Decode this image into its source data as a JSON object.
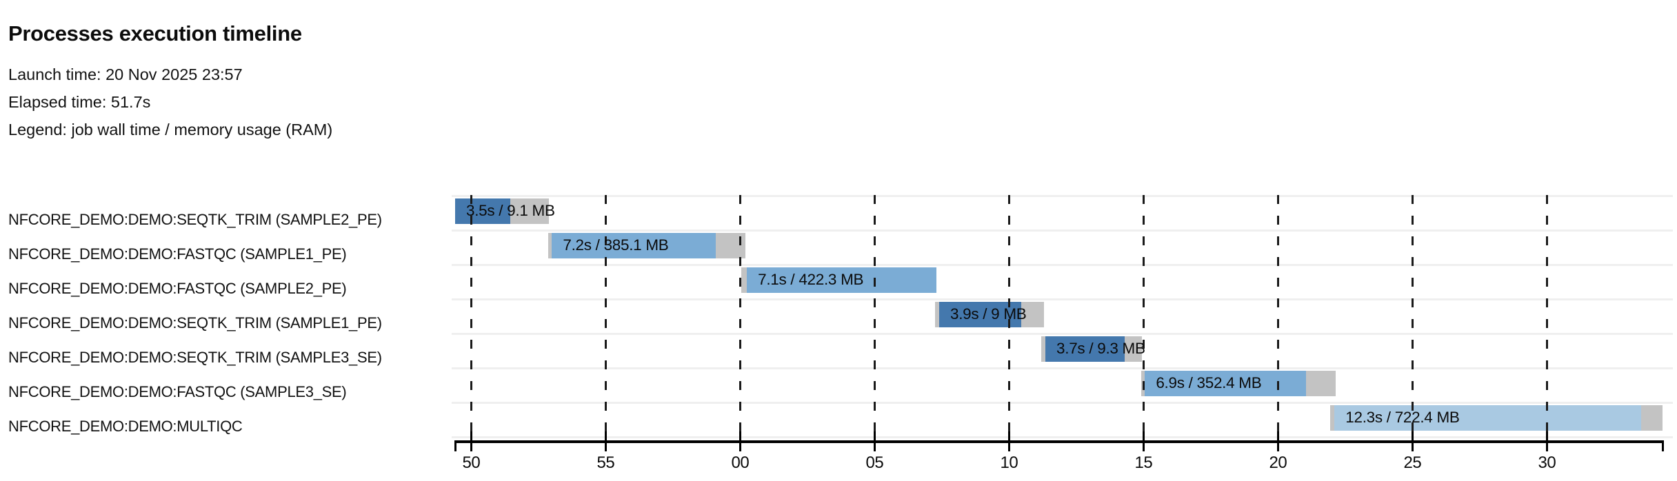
{
  "header": {
    "title": "Processes execution timeline",
    "launch_line": "Launch time: 20 Nov 2025 23:57",
    "elapsed_line": "Elapsed time: 51.7s",
    "legend_line": "Legend: job wall time / memory usage (RAM)"
  },
  "chart_data": {
    "type": "gantt-timeline",
    "title": "Processes execution timeline",
    "launch_time": "20 Nov 2025 23:57",
    "elapsed_time_s": 51.7,
    "legend": "job wall time / memory usage (RAM)",
    "x_axis": {
      "unit": "clock seconds after 23:57",
      "domain": [
        49.4,
        94.3
      ],
      "ticks": [
        {
          "t": 50,
          "label": "50"
        },
        {
          "t": 55,
          "label": "55"
        },
        {
          "t": 60,
          "label": "00"
        },
        {
          "t": 65,
          "label": "05"
        },
        {
          "t": 70,
          "label": "10"
        },
        {
          "t": 75,
          "label": "15"
        },
        {
          "t": 80,
          "label": "20"
        },
        {
          "t": 85,
          "label": "25"
        },
        {
          "t": 90,
          "label": "30"
        }
      ],
      "grid": "dashed-vertical-at-major-ticks"
    },
    "process_colors": {
      "SEQTK_TRIM": "#4478ad",
      "FASTQC": "#7bacd5",
      "MULTIQC": "#a9c9e2"
    },
    "pending_color": "#c3c3c3",
    "memory_color": "#c3c3c3",
    "tasks": [
      {
        "name": "NFCORE_DEMO:DEMO:SEQTK_TRIM (SAMPLE2_PE)",
        "process": "SEQTK_TRIM",
        "bar_label": "3.5s / 9.1 MB",
        "wall_time": "3.5s",
        "memory": "9.1 MB",
        "pre_start": 49.4,
        "run_start": 49.4,
        "run_end": 51.45,
        "mem_end": 52.9
      },
      {
        "name": "NFCORE_DEMO:DEMO:FASTQC (SAMPLE1_PE)",
        "process": "FASTQC",
        "bar_label": "7.2s / 385.1 MB",
        "wall_time": "7.2s",
        "memory": "385.1 MB",
        "pre_start": 52.85,
        "run_start": 53.0,
        "run_end": 59.1,
        "mem_end": 60.2
      },
      {
        "name": "NFCORE_DEMO:DEMO:FASTQC (SAMPLE2_PE)",
        "process": "FASTQC",
        "bar_label": "7.1s / 422.3 MB",
        "wall_time": "7.1s",
        "memory": "422.3 MB",
        "pre_start": 60.05,
        "run_start": 60.25,
        "run_end": 67.3,
        "mem_end": 67.3
      },
      {
        "name": "NFCORE_DEMO:DEMO:SEQTK_TRIM (SAMPLE1_PE)",
        "process": "SEQTK_TRIM",
        "bar_label": "3.9s / 9 MB",
        "wall_time": "3.9s",
        "memory": "9 MB",
        "pre_start": 67.25,
        "run_start": 67.4,
        "run_end": 70.45,
        "mem_end": 71.3
      },
      {
        "name": "NFCORE_DEMO:DEMO:SEQTK_TRIM (SAMPLE3_SE)",
        "process": "SEQTK_TRIM",
        "bar_label": "3.7s / 9.3 MB",
        "wall_time": "3.7s",
        "memory": "9.3 MB",
        "pre_start": 71.2,
        "run_start": 71.35,
        "run_end": 74.3,
        "mem_end": 74.95
      },
      {
        "name": "NFCORE_DEMO:DEMO:FASTQC (SAMPLE3_SE)",
        "process": "FASTQC",
        "bar_label": "6.9s / 352.4 MB",
        "wall_time": "6.9s",
        "memory": "352.4 MB",
        "pre_start": 74.9,
        "run_start": 75.05,
        "run_end": 81.05,
        "mem_end": 82.15
      },
      {
        "name": "NFCORE_DEMO:DEMO:MULTIQC",
        "process": "MULTIQC",
        "bar_label": "12.3s / 722.4 MB",
        "wall_time": "12.3s",
        "memory": "722.4 MB",
        "pre_start": 81.95,
        "run_start": 82.1,
        "run_end": 93.5,
        "mem_end": 94.3
      }
    ]
  }
}
